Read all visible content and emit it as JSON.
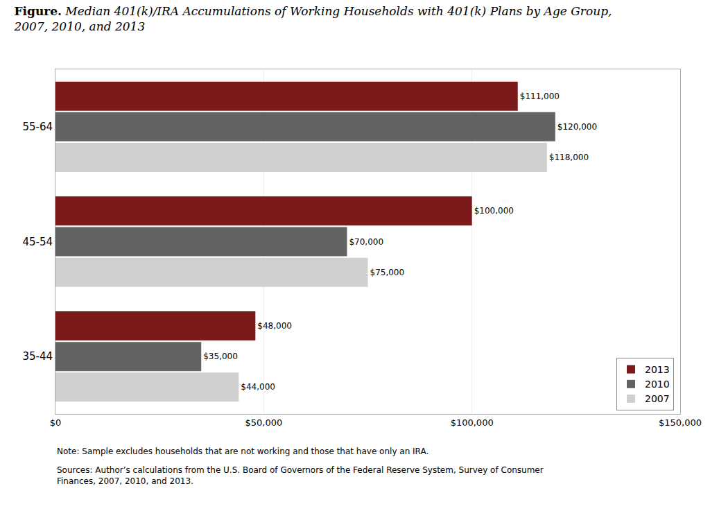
{
  "chart_data": {
    "type": "bar",
    "orientation": "horizontal",
    "title": "Figure. Median 401(k)/IRA Accumulations of Working Households with 401(k) Plans by Age Group, 2007, 2010, and 2013",
    "categories": [
      "35-44",
      "45-54",
      "55-64"
    ],
    "series": [
      {
        "name": "2013",
        "color": "#7B1A1A",
        "values": [
          48000,
          100000,
          111000
        ],
        "value_labels": [
          "$48,000",
          "$100,000",
          "$111,000"
        ]
      },
      {
        "name": "2010",
        "color": "#636363",
        "values": [
          35000,
          70000,
          120000
        ],
        "value_labels": [
          "$35,000",
          "$70,000",
          "$120,000"
        ]
      },
      {
        "name": "2007",
        "color": "#D0D0D0",
        "values": [
          44000,
          75000,
          118000
        ],
        "value_labels": [
          "$44,000",
          "$75,000",
          "$118,000"
        ]
      }
    ],
    "xlim": [
      0,
      150000
    ],
    "xticks": [
      {
        "value": 0,
        "label": "$0"
      },
      {
        "value": 50000,
        "label": "$50,000"
      },
      {
        "value": 100000,
        "label": "$100,000"
      },
      {
        "value": 150000,
        "label": "$150,000"
      }
    ],
    "grid": true,
    "legend": "lower right",
    "data_labels": true,
    "annotations": [
      "Note: Sample excludes households that are not working and those that have only an IRA.",
      "Sources: Author’s calculations from the U.S. Board of Governors of the Federal Reserve System, Survey of Consumer Finances, 2007, 2010, and 2013."
    ]
  }
}
